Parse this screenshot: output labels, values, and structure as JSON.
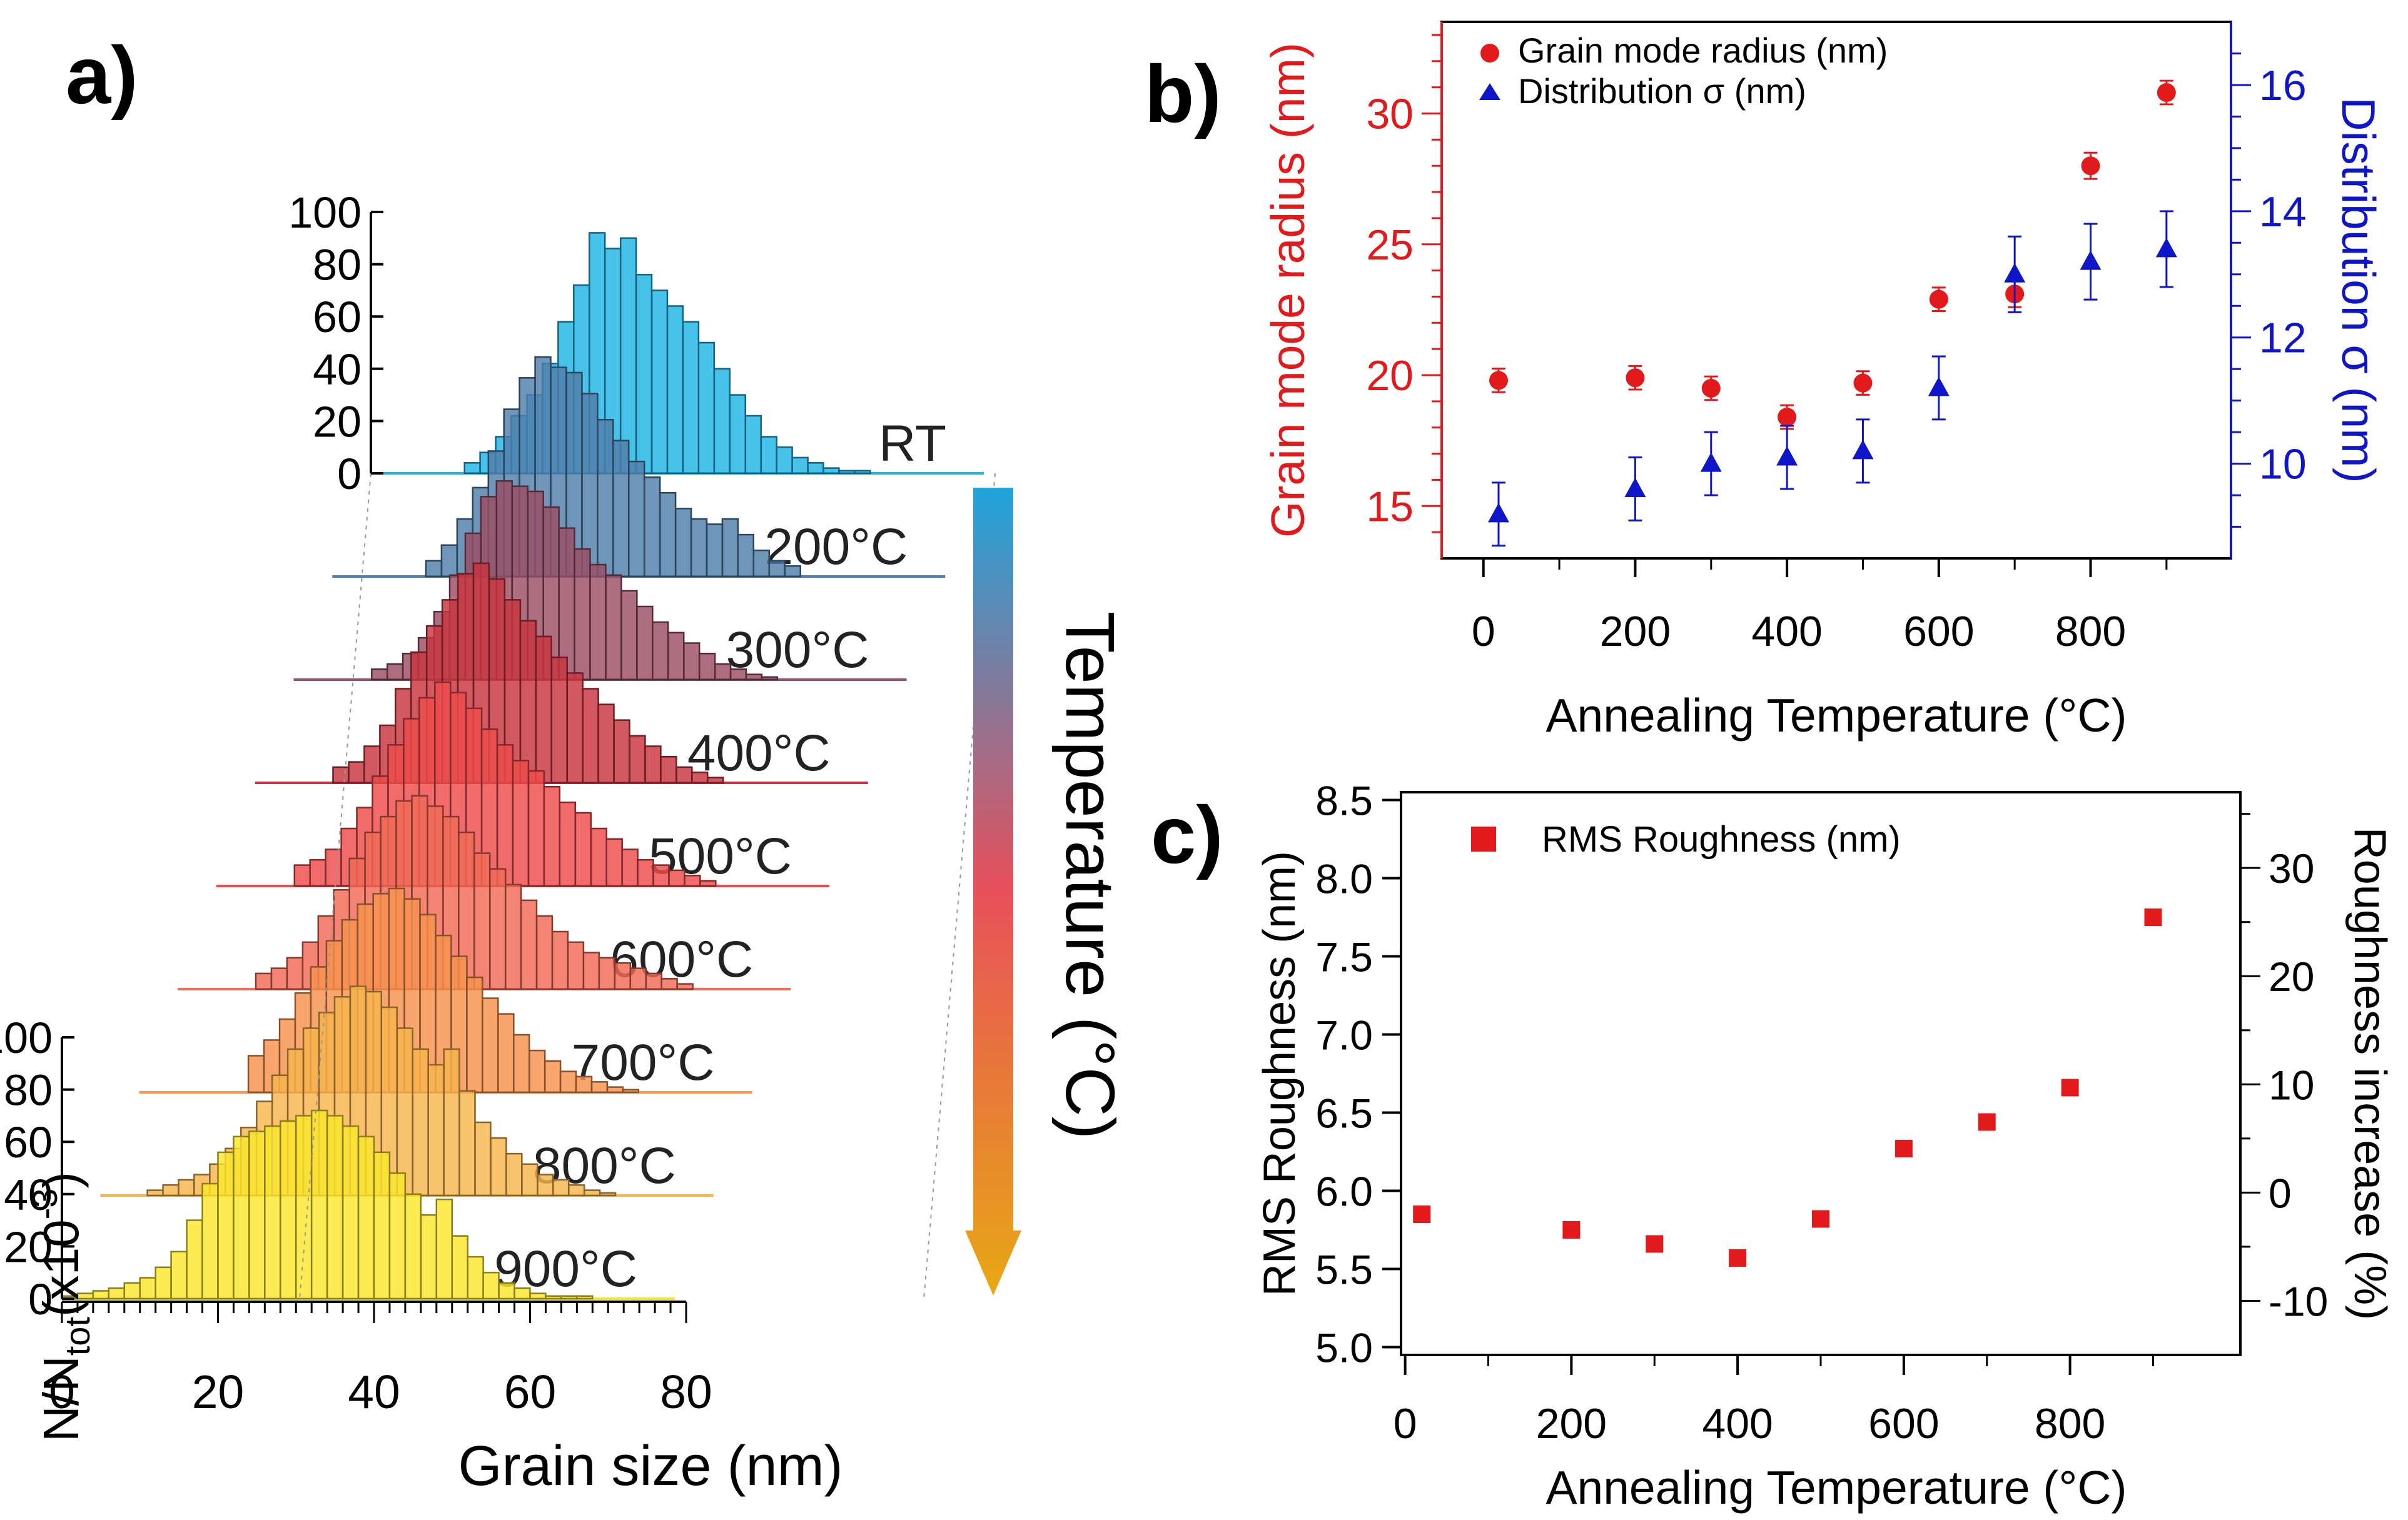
{
  "panel_labels": {
    "a": "a)",
    "b": "b)",
    "c": "c)"
  },
  "colors": {
    "hist_ramp": [
      "#1fb4e6",
      "#4f7ea8",
      "#9a4e64",
      "#c8343f",
      "#ee4a4a",
      "#f26a55",
      "#f7934e",
      "#f8b44c",
      "#fbe62c"
    ],
    "arrow_top": "#1fa3dc",
    "arrow_mid": "#e8505a",
    "arrow_bottom": "#e8a814",
    "red": "#e31a1c",
    "blue": "#0f16c8",
    "axis": "#000000"
  },
  "chart_data": [
    {
      "type": "bar",
      "title": "",
      "xlabel": "Grain size (nm)",
      "ylabel_main": "N/N",
      "ylabel_sub": "tot",
      "ylabel_tail": "(x10",
      "ylabel_exp": "-3",
      "ylabel_close": ")",
      "xlim": [
        0,
        80
      ],
      "ylim": [
        0,
        100
      ],
      "x_ticks": [
        "0",
        "20",
        "40",
        "60",
        "80"
      ],
      "y_ticks": [
        "0",
        "20",
        "40",
        "60",
        "80",
        "100"
      ],
      "temperature_arrow_label": "Temperature (°C)",
      "bin_width_nm": 2,
      "series": [
        {
          "name": "RT",
          "x": [
            12,
            14,
            16,
            18,
            20,
            22,
            24,
            26,
            28,
            30,
            32,
            34,
            36,
            38,
            40,
            42,
            44,
            46,
            48,
            50,
            52,
            54,
            56,
            58,
            60,
            62
          ],
          "values": [
            4,
            8,
            14,
            22,
            30,
            42,
            58,
            72,
            92,
            86,
            90,
            76,
            70,
            64,
            58,
            50,
            40,
            30,
            22,
            14,
            10,
            6,
            4,
            2,
            1,
            1
          ]
        },
        {
          "name": "200°C",
          "x": [
            12,
            14,
            16,
            18,
            20,
            22,
            24,
            26,
            28,
            30,
            32,
            34,
            36,
            38,
            40,
            42,
            44,
            46,
            48,
            50,
            52,
            54,
            56,
            58
          ],
          "values": [
            6,
            12,
            22,
            34,
            48,
            64,
            76,
            84,
            80,
            78,
            70,
            60,
            52,
            44,
            38,
            32,
            26,
            22,
            20,
            22,
            16,
            10,
            6,
            4
          ]
        },
        {
          "name": "300°C",
          "x": [
            10,
            12,
            14,
            16,
            18,
            20,
            22,
            24,
            26,
            28,
            30,
            32,
            34,
            36,
            38,
            40,
            42,
            44,
            46,
            48,
            50,
            52,
            54,
            56,
            58,
            60
          ],
          "values": [
            4,
            6,
            10,
            16,
            26,
            40,
            56,
            70,
            76,
            74,
            72,
            66,
            58,
            50,
            44,
            40,
            34,
            28,
            22,
            18,
            14,
            10,
            6,
            4,
            2,
            1
          ]
        },
        {
          "name": "400°C",
          "x": [
            10,
            12,
            14,
            16,
            18,
            20,
            22,
            24,
            26,
            28,
            30,
            32,
            34,
            36,
            38,
            40,
            42,
            44,
            46,
            48,
            50,
            52,
            54,
            56,
            58
          ],
          "values": [
            6,
            8,
            14,
            22,
            36,
            50,
            60,
            70,
            80,
            84,
            78,
            70,
            62,
            56,
            48,
            42,
            36,
            30,
            24,
            18,
            14,
            10,
            6,
            4,
            2
          ]
        },
        {
          "name": "500°C",
          "x": [
            10,
            12,
            14,
            16,
            18,
            20,
            22,
            24,
            26,
            28,
            30,
            32,
            34,
            36,
            38,
            40,
            42,
            44,
            46,
            48,
            50,
            52,
            54,
            56,
            58,
            60,
            62
          ],
          "values": [
            8,
            10,
            14,
            22,
            30,
            42,
            54,
            64,
            72,
            78,
            74,
            68,
            60,
            54,
            48,
            44,
            38,
            32,
            28,
            22,
            18,
            14,
            10,
            8,
            6,
            4,
            2
          ]
        },
        {
          "name": "600°C",
          "x": [
            10,
            12,
            14,
            16,
            18,
            20,
            22,
            24,
            26,
            28,
            30,
            32,
            34,
            36,
            38,
            40,
            42,
            44,
            46,
            48,
            50,
            52,
            54,
            56,
            58,
            60,
            62,
            64
          ],
          "values": [
            6,
            8,
            12,
            18,
            28,
            38,
            50,
            60,
            66,
            72,
            74,
            70,
            66,
            60,
            52,
            46,
            40,
            34,
            28,
            22,
            18,
            14,
            12,
            10,
            8,
            6,
            4,
            2
          ]
        },
        {
          "name": "700°C",
          "x": [
            14,
            16,
            18,
            20,
            22,
            24,
            26,
            28,
            30,
            32,
            34,
            36,
            38,
            40,
            42,
            44,
            46,
            48,
            50,
            52,
            54,
            56,
            58,
            60,
            62
          ],
          "values": [
            14,
            20,
            28,
            38,
            48,
            58,
            66,
            72,
            76,
            78,
            74,
            68,
            60,
            52,
            44,
            36,
            30,
            22,
            16,
            12,
            8,
            6,
            4,
            2,
            1
          ]
        },
        {
          "name": "800°C",
          "x": [
            6,
            8,
            10,
            12,
            14,
            16,
            18,
            20,
            22,
            24,
            26,
            28,
            30,
            32,
            34,
            36,
            38,
            40,
            42,
            44,
            46,
            48,
            50,
            52,
            54,
            56,
            58,
            60,
            62,
            64
          ],
          "values": [
            2,
            4,
            6,
            8,
            12,
            18,
            26,
            36,
            46,
            56,
            64,
            70,
            76,
            80,
            78,
            72,
            64,
            56,
            50,
            56,
            40,
            28,
            22,
            16,
            12,
            8,
            6,
            4,
            2,
            1
          ]
        },
        {
          "name": "900°C",
          "x": [
            0,
            2,
            4,
            6,
            8,
            10,
            12,
            14,
            16,
            18,
            20,
            22,
            24,
            26,
            28,
            30,
            32,
            34,
            36,
            38,
            40,
            42,
            44,
            46,
            48,
            50,
            52,
            54,
            56,
            58,
            60,
            62,
            64,
            66
          ],
          "values": [
            1,
            2,
            3,
            4,
            6,
            8,
            12,
            18,
            30,
            44,
            56,
            62,
            64,
            66,
            68,
            70,
            72,
            70,
            66,
            62,
            56,
            48,
            40,
            32,
            38,
            24,
            16,
            10,
            6,
            4,
            2,
            1,
            1,
            1
          ]
        }
      ]
    },
    {
      "type": "scatter",
      "title": "",
      "xlabel": "Annealing Temperature (°C)",
      "ylabel": "Grain mode radius (nm)",
      "ylabel_right": "Distribution σ (nm)",
      "xlim": [
        -55,
        985
      ],
      "ylim": [
        13,
        33.5
      ],
      "ylim_right": [
        8.5,
        17
      ],
      "x_ticks": [
        "0",
        "200",
        "400",
        "600",
        "800"
      ],
      "y_ticks": [
        "15",
        "20",
        "25",
        "30"
      ],
      "y_ticks_right": [
        "10",
        "12",
        "14",
        "16"
      ],
      "legend_position": "top-left",
      "series": [
        {
          "name": "Grain mode radius (nm)",
          "axis": "left",
          "marker": "circle",
          "x": [
            20,
            200,
            300,
            400,
            500,
            600,
            700,
            800,
            900
          ],
          "values": [
            19.8,
            19.9,
            19.5,
            18.4,
            19.7,
            22.9,
            23.1,
            28.0,
            30.8
          ],
          "errors": [
            0.45,
            0.45,
            0.45,
            0.45,
            0.45,
            0.45,
            0.5,
            0.5,
            0.45
          ]
        },
        {
          "name": "Distribution σ (nm)",
          "axis": "right",
          "marker": "triangle",
          "x": [
            20,
            200,
            300,
            400,
            500,
            600,
            700,
            800,
            900
          ],
          "values": [
            9.2,
            9.6,
            10.0,
            10.1,
            10.2,
            11.2,
            13.0,
            13.2,
            13.4
          ],
          "errors": [
            0.5,
            0.5,
            0.5,
            0.5,
            0.5,
            0.5,
            0.6,
            0.6,
            0.6
          ]
        }
      ]
    },
    {
      "type": "scatter",
      "title": "",
      "xlabel": "Annealing Temperature (°C)",
      "ylabel": "RMS Roughness (nm)",
      "ylabel_right": "Roughness increase (%)",
      "xlim": [
        -5,
        1005
      ],
      "ylim": [
        4.95,
        8.55
      ],
      "ylim_right": [
        -15,
        37
      ],
      "x_ticks": [
        "0",
        "200",
        "400",
        "600",
        "800"
      ],
      "y_ticks": [
        "5.0",
        "5.5",
        "6.0",
        "6.5",
        "7.0",
        "7.5",
        "8.0",
        "8.5"
      ],
      "y_ticks_right": [
        "-10",
        "0",
        "10",
        "20",
        "30"
      ],
      "legend_position": "top-left",
      "series": [
        {
          "name": "RMS Roughness (nm)",
          "marker": "square",
          "x": [
            20,
            200,
            300,
            400,
            500,
            600,
            700,
            800,
            900
          ],
          "values": [
            5.85,
            5.75,
            5.66,
            5.57,
            5.82,
            6.27,
            6.44,
            6.66,
            7.75
          ]
        }
      ]
    }
  ]
}
